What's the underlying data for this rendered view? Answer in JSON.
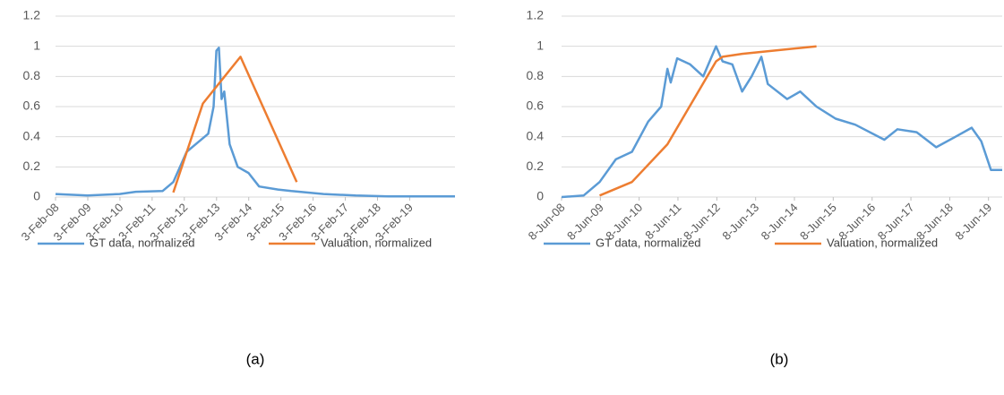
{
  "chart_data": [
    {
      "type": "line",
      "caption": "(a)",
      "xlim": [
        "2008-02-03",
        "2020-07-01"
      ],
      "xticks": [
        {
          "value": "2008-02-03",
          "label": "3-Feb-08"
        },
        {
          "value": "2009-02-03",
          "label": "3-Feb-09"
        },
        {
          "value": "2010-02-03",
          "label": "3-Feb-10"
        },
        {
          "value": "2011-02-03",
          "label": "3-Feb-11"
        },
        {
          "value": "2012-02-03",
          "label": "3-Feb-12"
        },
        {
          "value": "2013-02-03",
          "label": "3-Feb-13"
        },
        {
          "value": "2014-02-03",
          "label": "3-Feb-14"
        },
        {
          "value": "2015-02-03",
          "label": "3-Feb-15"
        },
        {
          "value": "2016-02-03",
          "label": "3-Feb-16"
        },
        {
          "value": "2017-02-03",
          "label": "3-Feb-17"
        },
        {
          "value": "2018-02-03",
          "label": "3-Feb-18"
        },
        {
          "value": "2019-02-03",
          "label": "3-Feb-19"
        }
      ],
      "ylim": [
        0,
        1.2
      ],
      "yticks": [
        0,
        0.2,
        0.4,
        0.6,
        0.8,
        1,
        1.2
      ],
      "grid": true,
      "series": [
        {
          "name": "GT data, normalized",
          "color": "#5b9bd5",
          "x": [
            "2008-02-03",
            "2009-02-01",
            "2010-02-01",
            "2010-08-01",
            "2011-06-01",
            "2011-10-01",
            "2012-03-01",
            "2012-07-01",
            "2012-11-01",
            "2013-01-01",
            "2013-02-01",
            "2013-03-01",
            "2013-04-01",
            "2013-05-01",
            "2013-07-01",
            "2013-10-01",
            "2014-02-01",
            "2014-06-01",
            "2015-01-01",
            "2015-06-01",
            "2016-06-01",
            "2017-06-01",
            "2018-06-01",
            "2020-07-01"
          ],
          "values": [
            0.02,
            0.01,
            0.02,
            0.035,
            0.04,
            0.1,
            0.3,
            0.36,
            0.42,
            0.6,
            0.97,
            0.99,
            0.65,
            0.7,
            0.35,
            0.2,
            0.16,
            0.07,
            0.05,
            0.04,
            0.02,
            0.01,
            0.005,
            0.005
          ]
        },
        {
          "name": "Valuation, normalized",
          "color": "#ed7d31",
          "x": [
            "2011-10-01",
            "2012-09-01",
            "2013-11-01",
            "2015-08-01"
          ],
          "values": [
            0.03,
            0.62,
            0.93,
            0.1
          ]
        }
      ]
    },
    {
      "type": "line",
      "caption": "(b)",
      "xlim": [
        "2008-06-08",
        "2019-10-15"
      ],
      "xticks": [
        {
          "value": "2008-06-08",
          "label": "8-Jun-08"
        },
        {
          "value": "2009-06-08",
          "label": "8-Jun-09"
        },
        {
          "value": "2010-06-08",
          "label": "8-Jun-10"
        },
        {
          "value": "2011-06-08",
          "label": "8-Jun-11"
        },
        {
          "value": "2012-06-08",
          "label": "8-Jun-12"
        },
        {
          "value": "2013-06-08",
          "label": "8-Jun-13"
        },
        {
          "value": "2014-06-08",
          "label": "8-Jun-14"
        },
        {
          "value": "2015-06-08",
          "label": "8-Jun-15"
        },
        {
          "value": "2016-06-08",
          "label": "8-Jun-16"
        },
        {
          "value": "2017-06-08",
          "label": "8-Jun-17"
        },
        {
          "value": "2018-06-08",
          "label": "8-Jun-18"
        },
        {
          "value": "2019-06-08",
          "label": "8-Jun-19"
        }
      ],
      "ylim": [
        0,
        1.2
      ],
      "yticks": [
        0,
        0.2,
        0.4,
        0.6,
        0.8,
        1,
        1.2
      ],
      "grid": true,
      "series": [
        {
          "name": "GT data, normalized",
          "color": "#5b9bd5",
          "x": [
            "2008-06-08",
            "2009-01-01",
            "2009-06-01",
            "2009-11-01",
            "2010-04-01",
            "2010-09-01",
            "2011-01-01",
            "2011-03-01",
            "2011-04-01",
            "2011-06-01",
            "2011-10-01",
            "2012-02-01",
            "2012-06-01",
            "2012-08-01",
            "2012-11-01",
            "2013-02-01",
            "2013-05-01",
            "2013-08-01",
            "2013-10-01",
            "2014-04-01",
            "2014-08-01",
            "2015-01-01",
            "2015-07-01",
            "2016-01-01",
            "2016-10-01",
            "2017-02-01",
            "2017-08-01",
            "2018-02-01",
            "2018-08-01",
            "2019-01-01",
            "2019-04-01",
            "2019-07-01",
            "2019-10-15"
          ],
          "values": [
            0,
            0.01,
            0.1,
            0.25,
            0.3,
            0.5,
            0.6,
            0.85,
            0.76,
            0.92,
            0.88,
            0.8,
            1.0,
            0.9,
            0.88,
            0.7,
            0.8,
            0.93,
            0.75,
            0.65,
            0.7,
            0.6,
            0.52,
            0.48,
            0.38,
            0.45,
            0.43,
            0.33,
            0.4,
            0.46,
            0.37,
            0.18,
            0.18
          ]
        },
        {
          "name": "Valuation, normalized",
          "color": "#ed7d31",
          "x": [
            "2009-06-01",
            "2010-04-01",
            "2011-03-01",
            "2012-06-01",
            "2012-08-01",
            "2013-02-01",
            "2015-01-01"
          ],
          "values": [
            0.01,
            0.1,
            0.35,
            0.9,
            0.93,
            0.95,
            1.0
          ]
        }
      ]
    }
  ]
}
